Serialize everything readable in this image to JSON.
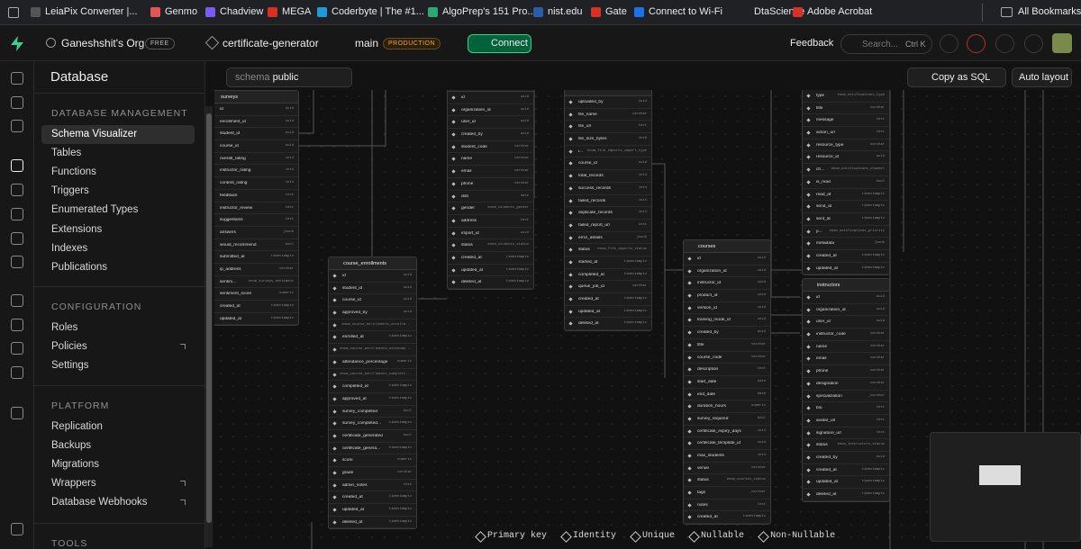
{
  "bookmarks": [
    "LeiaPix Converter |...",
    "Genmo",
    "Chadview",
    "MEGA",
    "Coderbyte | The #1...",
    "AlgoPrep's 151 Pro...",
    "nist.edu",
    "Gate",
    "Connect to Wi-Fi",
    "DtaScience",
    "Adobe Acrobat"
  ],
  "all_bookmarks": "All Bookmarks",
  "header": {
    "org": "Ganeshshit's Org",
    "plan": "FREE",
    "project": "certificate-generator",
    "branch": "main",
    "env": "PRODUCTION",
    "connect": "Connect",
    "feedback": "Feedback",
    "search": "Search...",
    "shortcut": "Ctrl K"
  },
  "sidebar": {
    "title": "Database",
    "sections": [
      {
        "heading": "DATABASE MANAGEMENT",
        "items": [
          "Schema Visualizer",
          "Tables",
          "Functions",
          "Triggers",
          "Enumerated Types",
          "Extensions",
          "Indexes",
          "Publications"
        ]
      },
      {
        "heading": "CONFIGURATION",
        "items": [
          "Roles",
          "Policies",
          "Settings"
        ]
      },
      {
        "heading": "PLATFORM",
        "items": [
          "Replication",
          "Backups",
          "Migrations",
          "Wrappers",
          "Database Webhooks"
        ]
      },
      {
        "heading": "TOOLS",
        "items": []
      }
    ]
  },
  "toolbar": {
    "schema_label": "schema",
    "schema": "public",
    "copy": "Copy as SQL",
    "auto_layout": "Auto layout"
  },
  "tables": [
    {
      "name": "surveys",
      "columns": [
        {
          "name": "id",
          "type": "uuid"
        },
        {
          "name": "enrollment_id",
          "type": "uuid"
        },
        {
          "name": "student_id",
          "type": "uuid"
        },
        {
          "name": "course_id",
          "type": "uuid"
        },
        {
          "name": "overall_rating",
          "type": "int4"
        },
        {
          "name": "instructor_rating",
          "type": "int4"
        },
        {
          "name": "content_rating",
          "type": "int4"
        },
        {
          "name": "feedback",
          "type": "text"
        },
        {
          "name": "instructor_review",
          "type": "text"
        },
        {
          "name": "suggestions",
          "type": "text"
        },
        {
          "name": "answers",
          "type": "jsonb"
        },
        {
          "name": "would_recommend",
          "type": "bool"
        },
        {
          "name": "submitted_at",
          "type": "timestamptz"
        },
        {
          "name": "ip_address",
          "type": "varchar"
        },
        {
          "name": "sentim...",
          "type": "enum_surveys_sentiment"
        },
        {
          "name": "sentiment_score",
          "type": "numeric"
        },
        {
          "name": "created_at",
          "type": "timestamptz"
        },
        {
          "name": "updated_at",
          "type": "timestamptz"
        }
      ]
    },
    {
      "columns": [
        {
          "name": "id",
          "type": "uuid"
        },
        {
          "name": "organization_id",
          "type": "uuid"
        },
        {
          "name": "user_id",
          "type": "uuid"
        },
        {
          "name": "created_by",
          "type": "uuid"
        },
        {
          "name": "student_code",
          "type": "varchar"
        },
        {
          "name": "name",
          "type": "varchar"
        },
        {
          "name": "email",
          "type": "varchar"
        },
        {
          "name": "phone",
          "type": "varchar"
        },
        {
          "name": "dob",
          "type": "date"
        },
        {
          "name": "gender",
          "type": "enum_students_gender"
        },
        {
          "name": "address",
          "type": "text"
        },
        {
          "name": "import_id",
          "type": "uuid"
        },
        {
          "name": "status",
          "type": "enum_students_status"
        },
        {
          "name": "created_at",
          "type": "timestamptz"
        },
        {
          "name": "updated_at",
          "type": "timestamptz"
        },
        {
          "name": "deleted_at",
          "type": "timestamptz"
        }
      ]
    },
    {
      "columns": [
        {
          "name": "uploaded_by",
          "type": "uuid"
        },
        {
          "name": "file_name",
          "type": "varchar"
        },
        {
          "name": "file_url",
          "type": "text"
        },
        {
          "name": "file_size_bytes",
          "type": "int8"
        },
        {
          "name": "i...",
          "type": "enum_file_imports_import_type"
        },
        {
          "name": "course_id",
          "type": "uuid"
        },
        {
          "name": "total_records",
          "type": "int4"
        },
        {
          "name": "success_records",
          "type": "int4"
        },
        {
          "name": "failed_records",
          "type": "int4"
        },
        {
          "name": "duplicate_records",
          "type": "int4"
        },
        {
          "name": "failed_report_url",
          "type": "text"
        },
        {
          "name": "error_details",
          "type": "jsonb"
        },
        {
          "name": "status",
          "type": "enum_file_imports_status"
        },
        {
          "name": "started_at",
          "type": "timestamptz"
        },
        {
          "name": "completed_at",
          "type": "timestamptz"
        },
        {
          "name": "queue_job_id",
          "type": "varchar"
        },
        {
          "name": "created_at",
          "type": "timestamptz"
        },
        {
          "name": "updated_at",
          "type": "timestamptz"
        },
        {
          "name": "deleted_at",
          "type": "timestamptz"
        }
      ]
    },
    {
      "columns": [
        {
          "name": "type",
          "type": "enum_notifications_type"
        },
        {
          "name": "title",
          "type": "varchar"
        },
        {
          "name": "message",
          "type": "text"
        },
        {
          "name": "action_url",
          "type": "text"
        },
        {
          "name": "resource_type",
          "type": "varchar"
        },
        {
          "name": "resource_id",
          "type": "uuid"
        },
        {
          "name": "ch...",
          "type": "enum_notifications_channel"
        },
        {
          "name": "is_read",
          "type": "bool"
        },
        {
          "name": "read_at",
          "type": "timestamptz"
        },
        {
          "name": "send_at",
          "type": "timestamptz"
        },
        {
          "name": "sent_at",
          "type": "timestamptz"
        },
        {
          "name": "p...",
          "type": "enum_notifications_priority"
        },
        {
          "name": "metadata",
          "type": "jsonb"
        },
        {
          "name": "created_at",
          "type": "timestamptz"
        },
        {
          "name": "updated_at",
          "type": "timestamptz"
        }
      ]
    },
    {
      "name": "course_enrollments",
      "columns": [
        {
          "name": "id",
          "type": "uuid"
        },
        {
          "name": "student_id",
          "type": "uuid"
        },
        {
          "name": "course_id",
          "type": "uuid"
        },
        {
          "name": "approved_by",
          "type": "uuid"
        },
        {
          "type": "enum_course_enrollments_enrollm..."
        },
        {
          "name": "enrolled_at",
          "type": "timestamptz"
        },
        {
          "type": "enum_course_enrollments_attendan..."
        },
        {
          "name": "attendance_percentage",
          "type": "numeric"
        },
        {
          "type": "enum_course_enrollments_completi..."
        },
        {
          "name": "completed_at",
          "type": "timestamptz"
        },
        {
          "name": "approved_at",
          "type": "timestamptz"
        },
        {
          "name": "survey_completed",
          "type": "bool"
        },
        {
          "name": "survey_completed...",
          "type": "timestamptz"
        },
        {
          "name": "certificate_generated",
          "type": "bool"
        },
        {
          "name": "certificate_genera...",
          "type": "timestamptz"
        },
        {
          "name": "score",
          "type": "numeric"
        },
        {
          "name": "grade",
          "type": "varchar"
        },
        {
          "name": "admin_notes",
          "type": "text"
        },
        {
          "name": "created_at",
          "type": "timestamptz"
        },
        {
          "name": "updated_at",
          "type": "timestamptz"
        },
        {
          "name": "deleted_at",
          "type": "timestamptz"
        }
      ]
    },
    {
      "name": "courses",
      "columns": [
        {
          "name": "id",
          "type": "uuid"
        },
        {
          "name": "organization_id",
          "type": "uuid"
        },
        {
          "name": "instructor_id",
          "type": "uuid"
        },
        {
          "name": "product_id",
          "type": "uuid"
        },
        {
          "name": "version_id",
          "type": "uuid"
        },
        {
          "name": "training_mode_id",
          "type": "uuid"
        },
        {
          "name": "created_by",
          "type": "uuid"
        },
        {
          "name": "title",
          "type": "varchar"
        },
        {
          "name": "course_code",
          "type": "varchar"
        },
        {
          "name": "description",
          "type": "text"
        },
        {
          "name": "start_date",
          "type": "date"
        },
        {
          "name": "end_date",
          "type": "date"
        },
        {
          "name": "duration_hours",
          "type": "numeric"
        },
        {
          "name": "survey_required",
          "type": "bool"
        },
        {
          "name": "certificate_expiry_days",
          "type": "int4"
        },
        {
          "name": "certificate_template_id",
          "type": "uuid"
        },
        {
          "name": "max_students",
          "type": "int4"
        },
        {
          "name": "venue",
          "type": "varchar"
        },
        {
          "name": "status",
          "type": "enum_courses_status"
        },
        {
          "name": "tags",
          "type": "_varchar"
        },
        {
          "name": "notes",
          "type": "text"
        },
        {
          "name": "created_at",
          "type": "timestamptz"
        }
      ]
    },
    {
      "name": "instructors",
      "columns": [
        {
          "name": "id",
          "type": "uuid"
        },
        {
          "name": "organization_id",
          "type": "uuid"
        },
        {
          "name": "user_id",
          "type": "uuid"
        },
        {
          "name": "instructor_code",
          "type": "varchar"
        },
        {
          "name": "name",
          "type": "varchar"
        },
        {
          "name": "email",
          "type": "varchar"
        },
        {
          "name": "phone",
          "type": "varchar"
        },
        {
          "name": "designation",
          "type": "varchar"
        },
        {
          "name": "specialization",
          "type": "_varchar"
        },
        {
          "name": "bio",
          "type": "text"
        },
        {
          "name": "avatar_url",
          "type": "text"
        },
        {
          "name": "signature_url",
          "type": "text"
        },
        {
          "name": "status",
          "type": "enum_instructors_status"
        },
        {
          "name": "created_by",
          "type": "uuid"
        },
        {
          "name": "created_at",
          "type": "timestamptz"
        },
        {
          "name": "updated_at",
          "type": "timestamptz"
        },
        {
          "name": "deleted_at",
          "type": "timestamptz"
        }
      ]
    }
  ],
  "legend": [
    "Primary key",
    "Identity",
    "Unique",
    "Nullable",
    "Non-Nullable"
  ]
}
